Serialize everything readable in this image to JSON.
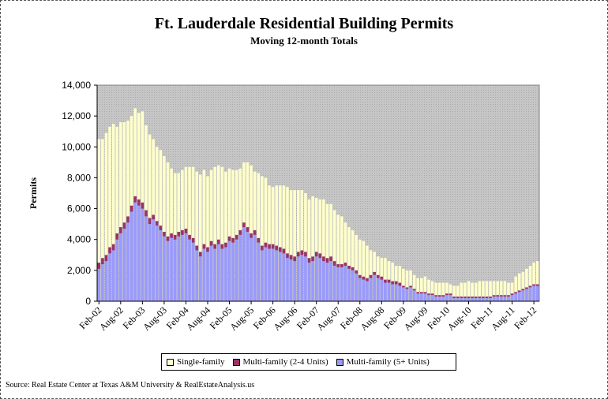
{
  "title": "Ft. Lauderdale Residential Building Permits",
  "subtitle": "Moving 12-month Totals",
  "source": "Source: Real Estate Center at Texas A&M University & RealEstateAnalysis.us",
  "colors": {
    "single_family": "#ffffcc",
    "multi_2_4": "#993366",
    "multi_5plus": "#9999ff",
    "plot_bg": "#c0c0c0"
  },
  "chart_data": {
    "type": "bar",
    "stacked": true,
    "title": "Ft. Lauderdale Residential Building Permits",
    "subtitle": "Moving 12-month Totals",
    "xlabel": "",
    "ylabel": "Permits",
    "ylim": [
      0,
      14000
    ],
    "yticks": [
      "0",
      "2,000",
      "4,000",
      "6,000",
      "8,000",
      "10,000",
      "12,000",
      "14,000"
    ],
    "grid": false,
    "legend_position": "bottom",
    "x_tick_labels": [
      "Feb-02",
      "Aug-02",
      "Feb-03",
      "Aug-03",
      "Feb-04",
      "Aug-04",
      "Feb-05",
      "Aug-05",
      "Feb-06",
      "Aug-06",
      "Feb-07",
      "Aug-07",
      "Feb-08",
      "Aug-08",
      "Feb-09",
      "Aug-09",
      "Feb-10",
      "Aug-10",
      "Feb-11",
      "Aug-11",
      "Feb-12"
    ],
    "categories": [
      "Feb-02",
      "Mar-02",
      "Apr-02",
      "May-02",
      "Jun-02",
      "Jul-02",
      "Aug-02",
      "Sep-02",
      "Oct-02",
      "Nov-02",
      "Dec-02",
      "Jan-03",
      "Feb-03",
      "Mar-03",
      "Apr-03",
      "May-03",
      "Jun-03",
      "Jul-03",
      "Aug-03",
      "Sep-03",
      "Oct-03",
      "Nov-03",
      "Dec-03",
      "Jan-04",
      "Feb-04",
      "Mar-04",
      "Apr-04",
      "May-04",
      "Jun-04",
      "Jul-04",
      "Aug-04",
      "Sep-04",
      "Oct-04",
      "Nov-04",
      "Dec-04",
      "Jan-05",
      "Feb-05",
      "Mar-05",
      "Apr-05",
      "May-05",
      "Jun-05",
      "Jul-05",
      "Aug-05",
      "Sep-05",
      "Oct-05",
      "Nov-05",
      "Dec-05",
      "Jan-06",
      "Feb-06",
      "Mar-06",
      "Apr-06",
      "May-06",
      "Jun-06",
      "Jul-06",
      "Aug-06",
      "Sep-06",
      "Oct-06",
      "Nov-06",
      "Dec-06",
      "Jan-07",
      "Feb-07",
      "Mar-07",
      "Apr-07",
      "May-07",
      "Jun-07",
      "Jul-07",
      "Aug-07",
      "Sep-07",
      "Oct-07",
      "Nov-07",
      "Dec-07",
      "Jan-08",
      "Feb-08",
      "Mar-08",
      "Apr-08",
      "May-08",
      "Jun-08",
      "Jul-08",
      "Aug-08",
      "Sep-08",
      "Oct-08",
      "Nov-08",
      "Dec-08",
      "Jan-09",
      "Feb-09",
      "Mar-09",
      "Apr-09",
      "May-09",
      "Jun-09",
      "Jul-09",
      "Aug-09",
      "Sep-09",
      "Oct-09",
      "Nov-09",
      "Dec-09",
      "Jan-10",
      "Feb-10",
      "Mar-10",
      "Apr-10",
      "May-10",
      "Jun-10",
      "Jul-10",
      "Aug-10",
      "Sep-10",
      "Oct-10",
      "Nov-10",
      "Dec-10",
      "Jan-11",
      "Feb-11",
      "Mar-11",
      "Apr-11",
      "May-11",
      "Jun-11",
      "Jul-11",
      "Aug-11",
      "Sep-11",
      "Oct-11",
      "Nov-11",
      "Dec-11",
      "Jan-12",
      "Feb-12",
      "Mar-12"
    ],
    "series": [
      {
        "name": "Multi-family (5+ Units)",
        "values": [
          2100,
          2400,
          2600,
          3100,
          3300,
          4000,
          4400,
          4700,
          5100,
          5800,
          6400,
          6200,
          6000,
          5500,
          5000,
          5300,
          4900,
          4600,
          4200,
          3900,
          4100,
          4000,
          4200,
          4300,
          4400,
          4000,
          3800,
          3300,
          2900,
          3400,
          3200,
          3600,
          3400,
          3700,
          3400,
          3500,
          3900,
          3800,
          4000,
          4300,
          4800,
          4500,
          4100,
          4300,
          3800,
          3300,
          3500,
          3400,
          3400,
          3300,
          3200,
          3100,
          2800,
          2700,
          2600,
          2900,
          3000,
          2900,
          2500,
          2600,
          2900,
          2800,
          2600,
          2500,
          2600,
          2300,
          2200,
          2200,
          2300,
          2100,
          2000,
          1800,
          1500,
          1400,
          1300,
          1500,
          1700,
          1500,
          1400,
          1200,
          1200,
          1100,
          1100,
          1000,
          900,
          800,
          900,
          700,
          500,
          500,
          500,
          400,
          400,
          300,
          300,
          300,
          400,
          400,
          200,
          200,
          200,
          200,
          200,
          200,
          200,
          200,
          200,
          200,
          200,
          300,
          300,
          300,
          300,
          300,
          400,
          500,
          600,
          700,
          800,
          900,
          1000,
          1000
        ]
      },
      {
        "name": "Multi-family (2-4 Units)",
        "values": [
          400,
          400,
          400,
          400,
          400,
          400,
          400,
          400,
          400,
          400,
          400,
          400,
          400,
          400,
          400,
          300,
          300,
          300,
          300,
          300,
          300,
          300,
          300,
          300,
          300,
          300,
          300,
          300,
          300,
          300,
          300,
          300,
          300,
          300,
          300,
          300,
          300,
          300,
          300,
          300,
          300,
          300,
          300,
          300,
          300,
          300,
          300,
          300,
          300,
          300,
          300,
          300,
          300,
          300,
          300,
          300,
          300,
          300,
          300,
          300,
          300,
          300,
          300,
          300,
          300,
          300,
          200,
          200,
          200,
          200,
          200,
          200,
          200,
          200,
          200,
          200,
          200,
          200,
          200,
          200,
          200,
          200,
          200,
          200,
          100,
          100,
          100,
          100,
          100,
          100,
          100,
          100,
          100,
          100,
          100,
          100,
          100,
          100,
          100,
          100,
          100,
          100,
          100,
          100,
          100,
          100,
          100,
          100,
          100,
          100,
          100,
          100,
          100,
          100,
          100,
          100,
          100,
          100,
          100,
          100,
          100,
          100
        ]
      },
      {
        "name": "Single-family",
        "values": [
          8000,
          7700,
          7900,
          7800,
          7800,
          6900,
          6800,
          6500,
          6200,
          5800,
          5700,
          5600,
          5900,
          5500,
          5400,
          4900,
          4800,
          4900,
          4900,
          4800,
          4200,
          4000,
          3800,
          3900,
          4000,
          4400,
          4600,
          4800,
          5000,
          4800,
          4600,
          4600,
          5000,
          4800,
          5000,
          4600,
          4400,
          4400,
          4200,
          4000,
          3900,
          4200,
          4400,
          3800,
          4200,
          4500,
          4200,
          3800,
          3700,
          3900,
          4000,
          4100,
          4300,
          4200,
          4300,
          4000,
          3900,
          3800,
          3800,
          3900,
          3500,
          3500,
          3700,
          3500,
          3400,
          3300,
          3200,
          3100,
          2600,
          2500,
          2400,
          2300,
          2300,
          2300,
          2100,
          1600,
          1300,
          1200,
          1200,
          1400,
          1200,
          1200,
          1000,
          1100,
          1100,
          1100,
          1000,
          900,
          900,
          900,
          1000,
          900,
          800,
          800,
          800,
          800,
          700,
          600,
          700,
          700,
          900,
          900,
          1000,
          900,
          900,
          1000,
          1000,
          1000,
          1000,
          900,
          900,
          900,
          900,
          800,
          700,
          1000,
          1100,
          1100,
          1200,
          1300,
          1400,
          1500
        ]
      }
    ]
  },
  "legend": {
    "items": [
      {
        "label": "Single-family",
        "color": "#ffffcc"
      },
      {
        "label": "Multi-family (2-4 Units)",
        "color": "#993366"
      },
      {
        "label": "Multi-family (5+ Units)",
        "color": "#9999ff"
      }
    ]
  }
}
